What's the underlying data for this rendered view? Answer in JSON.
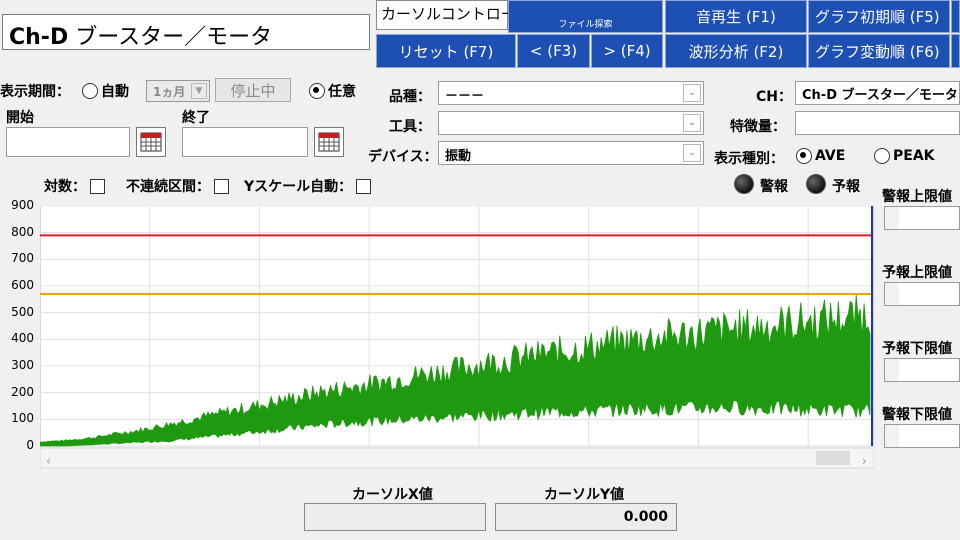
{
  "header": {
    "title_prefix": "Ch-D",
    "title_text": "ブースター／モータ",
    "cursor_control_label": "カーソルコントロール",
    "file_search_label": "ファイル探索",
    "buttons": {
      "reset": "リセット (F7)",
      "prev": "< (F3)",
      "next": "> (F4)",
      "sound_play": "音再生 (F1)",
      "waveform_analysis": "波形分析 (F2)",
      "graph_initial": "グラフ初期順 (F5)",
      "graph_change": "グラフ変動順 (F6)"
    }
  },
  "period": {
    "label": "表示期間：",
    "auto_label": "自動",
    "month_value": "1ヵ月",
    "stopped_label": "停止中",
    "manual_label": "任意",
    "selected": "manual",
    "start_label": "開始",
    "end_label": "終了",
    "start_value": "",
    "end_value": ""
  },
  "filters": {
    "hinshu_label": "品種：",
    "hinshu_value": "－－－",
    "kogu_label": "工具：",
    "kogu_value": "",
    "device_label": "デバイス：",
    "device_value": "振動",
    "ch_label": "CH：",
    "ch_value": "Ch-D ブースター／モータ",
    "feature_label": "特徴量：",
    "feature_value": "",
    "display_type_label": "表示種別：",
    "ave_label": "AVE",
    "peak_label": "PEAK",
    "display_type_selected": "AVE"
  },
  "options": {
    "log_label": "対数：",
    "discontinuous_label": "不連続区間：",
    "yscale_auto_label": "Yスケール自動：",
    "log_checked": false,
    "discontinuous_checked": false,
    "yscale_auto_checked": false
  },
  "indicators": {
    "alarm_label": "警報",
    "warning_label": "予報",
    "alarm_color": "#111111",
    "warning_color": "#111111"
  },
  "limits": {
    "alarm_upper_label": "警報上限値",
    "warning_upper_label": "予報上限値",
    "warning_lower_label": "予報下限値",
    "alarm_lower_label": "警報下限値",
    "alarm_upper_value": "",
    "warning_upper_value": "",
    "warning_lower_value": "",
    "alarm_lower_value": ""
  },
  "cursor_readout": {
    "x_label": "カーソルX値",
    "y_label": "カーソルY値",
    "x_value": "",
    "y_value": "0.000"
  },
  "chart_data": {
    "type": "area",
    "ylim": [
      0,
      900
    ],
    "yticks": [
      "900",
      "800",
      "700",
      "600",
      "500",
      "400",
      "300",
      "200",
      "100",
      "0"
    ],
    "series": [
      {
        "color": "#1f9a10",
        "upper_envelope": [
          15,
          20,
          30,
          45,
          60,
          80,
          100,
          120,
          140,
          160,
          180,
          200,
          215,
          230,
          250,
          265,
          280,
          300,
          315,
          330,
          345,
          360,
          375,
          390,
          400,
          410,
          420,
          430,
          440,
          450,
          460,
          470,
          480
        ],
        "lower_envelope": [
          0,
          0,
          5,
          10,
          15,
          20,
          30,
          40,
          50,
          60,
          70,
          80,
          90,
          95,
          100,
          105,
          110,
          115,
          120,
          125,
          130,
          130,
          135,
          140,
          140,
          140,
          145,
          145,
          140,
          140,
          135,
          135,
          130
        ]
      }
    ],
    "thresholds": [
      {
        "value": 790,
        "color": "#e31b1b"
      },
      {
        "value": 570,
        "color": "#f0a000"
      }
    ]
  }
}
